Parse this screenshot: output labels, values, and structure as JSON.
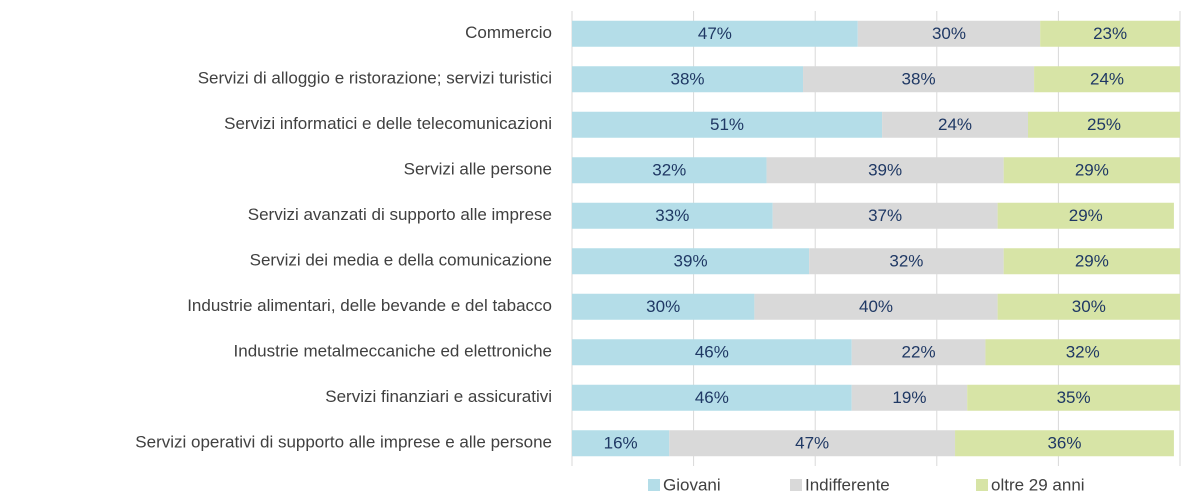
{
  "chart_data": {
    "type": "stacked_barh",
    "categories": [
      "Commercio",
      "Servizi di alloggio e ristorazione; servizi turistici",
      "Servizi informatici e delle telecomunicazioni",
      "Servizi alle persone",
      "Servizi avanzati di supporto alle imprese",
      "Servizi dei media e della comunicazione",
      "Industrie alimentari, delle bevande e del tabacco",
      "Industrie metalmeccaniche ed elettroniche",
      "Servizi finanziari e assicurativi",
      "Servizi operativi di supporto alle imprese e alle persone"
    ],
    "series": [
      {
        "name": "Giovani",
        "color": "#b4dde8",
        "values": [
          47,
          38,
          51,
          32,
          33,
          39,
          30,
          46,
          46,
          16
        ],
        "value_labels": [
          "47%",
          "38%",
          "51%",
          "32%",
          "33%",
          "39%",
          "30%",
          "46%",
          "46%",
          "16%"
        ]
      },
      {
        "name": "Indifferente",
        "color": "#d9d9d9",
        "values": [
          30,
          38,
          24,
          39,
          37,
          32,
          40,
          22,
          19,
          47
        ],
        "value_labels": [
          "30%",
          "38%",
          "24%",
          "39%",
          "37%",
          "32%",
          "40%",
          "22%",
          "19%",
          "47%"
        ]
      },
      {
        "name": "oltre 29 anni",
        "color": "#d7e4a6",
        "values": [
          23,
          24,
          25,
          29,
          29,
          29,
          30,
          32,
          35,
          36
        ],
        "value_labels": [
          "23%",
          "24%",
          "25%",
          "29%",
          "29%",
          "29%",
          "30%",
          "32%",
          "35%",
          "36%"
        ]
      }
    ],
    "xlim": [
      0,
      100
    ],
    "xticks": [
      0,
      20,
      40,
      60,
      80,
      100
    ],
    "grid": true,
    "legend": "bottom"
  }
}
